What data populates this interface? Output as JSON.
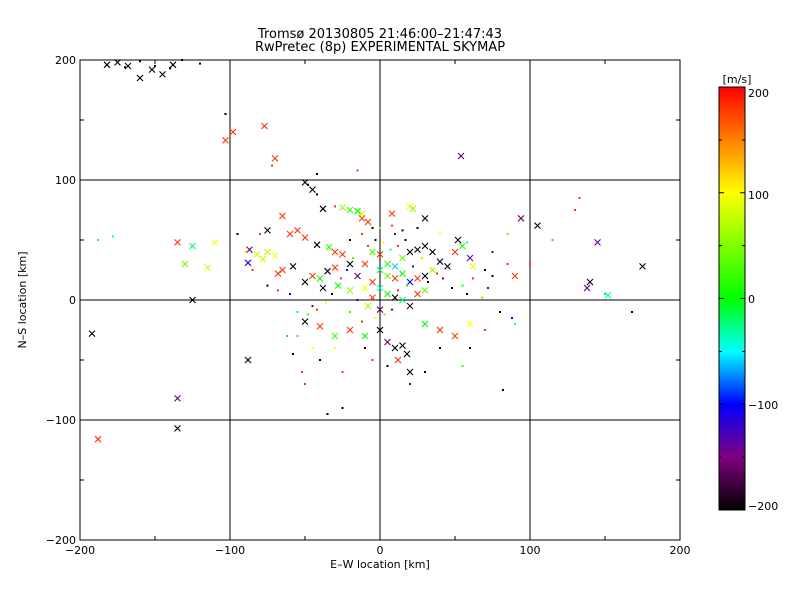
{
  "chart_data": {
    "type": "scatter",
    "title": "Tromsø 20130805 21:46:00–21:47:43",
    "subtitle": "RwPretec (8p) EXPERIMENTAL SKYMAP",
    "xlabel": "E–W location [km]",
    "ylabel": "N–S location [km]",
    "xlim": [
      -200,
      200
    ],
    "ylim": [
      -200,
      200
    ],
    "xticks": [
      "−200",
      "−100",
      "0",
      "100",
      "200"
    ],
    "yticks": [
      "−200",
      "−100",
      "0",
      "100",
      "200"
    ],
    "grid": true,
    "colorbar": {
      "label": "[m/s]",
      "range": [
        -200,
        200
      ],
      "ticks": [
        "200",
        "100",
        "0",
        "−100",
        "−200"
      ]
    },
    "series": [
      {
        "marker": "x",
        "points": [
          [
            -182,
            196,
            -200
          ],
          [
            -175,
            198,
            -200
          ],
          [
            -168,
            195,
            -200
          ],
          [
            -160,
            185,
            -200
          ],
          [
            -152,
            192,
            -200
          ],
          [
            -145,
            188,
            -200
          ],
          [
            -138,
            196,
            -200
          ],
          [
            -103,
            133,
            180
          ],
          [
            -98,
            140,
            180
          ],
          [
            -77,
            145,
            180
          ],
          [
            -70,
            118,
            180
          ],
          [
            54,
            120,
            -160
          ],
          [
            -50,
            98,
            -200
          ],
          [
            -45,
            92,
            -200
          ],
          [
            -65,
            70,
            180
          ],
          [
            -38,
            76,
            -200
          ],
          [
            -25,
            77,
            60
          ],
          [
            -20,
            75,
            20
          ],
          [
            -15,
            74,
            0
          ],
          [
            -12,
            72,
            80
          ],
          [
            20,
            78,
            90
          ],
          [
            22,
            76,
            60
          ],
          [
            30,
            68,
            -200
          ],
          [
            -12,
            68,
            180
          ],
          [
            -8,
            65,
            180
          ],
          [
            8,
            72,
            180
          ],
          [
            -75,
            58,
            -200
          ],
          [
            -60,
            55,
            180
          ],
          [
            -55,
            58,
            180
          ],
          [
            -50,
            52,
            180
          ],
          [
            -42,
            46,
            -200
          ],
          [
            -34,
            44,
            20
          ],
          [
            -30,
            40,
            180
          ],
          [
            -25,
            38,
            180
          ],
          [
            -20,
            30,
            -200
          ],
          [
            -10,
            30,
            180
          ],
          [
            -5,
            40,
            20
          ],
          [
            0,
            38,
            180
          ],
          [
            5,
            30,
            20
          ],
          [
            10,
            28,
            -60
          ],
          [
            15,
            35,
            40
          ],
          [
            20,
            40,
            -200
          ],
          [
            25,
            42,
            -200
          ],
          [
            30,
            45,
            -200
          ],
          [
            35,
            40,
            -200
          ],
          [
            40,
            32,
            -200
          ],
          [
            45,
            28,
            -200
          ],
          [
            50,
            40,
            180
          ],
          [
            55,
            45,
            20
          ],
          [
            60,
            35,
            -140
          ],
          [
            62,
            28,
            90
          ],
          [
            52,
            50,
            -200
          ],
          [
            0,
            25,
            -20
          ],
          [
            5,
            20,
            40
          ],
          [
            10,
            18,
            180
          ],
          [
            15,
            22,
            0
          ],
          [
            20,
            15,
            -100
          ],
          [
            25,
            18,
            180
          ],
          [
            30,
            20,
            -200
          ],
          [
            35,
            25,
            60
          ],
          [
            -5,
            15,
            180
          ],
          [
            -10,
            10,
            100
          ],
          [
            -15,
            20,
            -160
          ],
          [
            -20,
            8,
            60
          ],
          [
            0,
            10,
            -40
          ],
          [
            5,
            5,
            0
          ],
          [
            10,
            2,
            -200
          ],
          [
            15,
            0,
            -20
          ],
          [
            20,
            -5,
            -180
          ],
          [
            25,
            5,
            180
          ],
          [
            30,
            8,
            40
          ],
          [
            -5,
            2,
            180
          ],
          [
            -8,
            -5,
            60
          ],
          [
            0,
            -8,
            -160
          ],
          [
            -135,
            48,
            180
          ],
          [
            -130,
            30,
            40
          ],
          [
            -125,
            45,
            -20
          ],
          [
            -115,
            27,
            80
          ],
          [
            -110,
            48,
            100
          ],
          [
            -87,
            42,
            -160
          ],
          [
            -88,
            31,
            -120
          ],
          [
            -82,
            38,
            80
          ],
          [
            -78,
            34,
            80
          ],
          [
            -75,
            40,
            80
          ],
          [
            -70,
            37,
            100
          ],
          [
            -65,
            25,
            180
          ],
          [
            -68,
            22,
            180
          ],
          [
            -58,
            28,
            -200
          ],
          [
            -45,
            20,
            180
          ],
          [
            -40,
            18,
            0
          ],
          [
            -35,
            24,
            -200
          ],
          [
            -30,
            27,
            180
          ],
          [
            -28,
            12,
            0
          ],
          [
            -38,
            10,
            -200
          ],
          [
            -50,
            15,
            -200
          ],
          [
            -125,
            0,
            -200
          ],
          [
            -192,
            -28,
            -200
          ],
          [
            -88,
            -50,
            -200
          ],
          [
            -135,
            -82,
            -160
          ],
          [
            -135,
            -107,
            -200
          ],
          [
            -188,
            -116,
            180
          ],
          [
            -50,
            -18,
            -200
          ],
          [
            -40,
            -22,
            180
          ],
          [
            -30,
            -30,
            20
          ],
          [
            -20,
            -25,
            180
          ],
          [
            -10,
            -30,
            0
          ],
          [
            0,
            -25,
            -200
          ],
          [
            10,
            -40,
            -200
          ],
          [
            15,
            -38,
            -200
          ],
          [
            18,
            -45,
            -200
          ],
          [
            20,
            -60,
            -200
          ],
          [
            12,
            -50,
            180
          ],
          [
            5,
            -35,
            -160
          ],
          [
            30,
            -20,
            0
          ],
          [
            40,
            -25,
            180
          ],
          [
            50,
            -30,
            180
          ],
          [
            60,
            -20,
            100
          ],
          [
            90,
            20,
            180
          ],
          [
            94,
            68,
            -160
          ],
          [
            105,
            62,
            -200
          ],
          [
            140,
            15,
            -200
          ],
          [
            138,
            10,
            -140
          ],
          [
            145,
            48,
            -140
          ],
          [
            152,
            4,
            -40
          ],
          [
            175,
            28,
            -200
          ]
        ]
      },
      {
        "marker": "dot",
        "points": [
          [
            -188,
            50,
            -20
          ],
          [
            -178,
            53,
            -40
          ],
          [
            -170,
            194,
            -200
          ],
          [
            -160,
            199,
            -200
          ],
          [
            -150,
            195,
            -200
          ],
          [
            -140,
            193,
            -200
          ],
          [
            -132,
            200,
            -200
          ],
          [
            -120,
            197,
            -200
          ],
          [
            -103,
            155,
            -200
          ],
          [
            -72,
            112,
            180
          ],
          [
            -42,
            105,
            -200
          ],
          [
            -15,
            108,
            180
          ],
          [
            -48,
            96,
            -200
          ],
          [
            -42,
            88,
            -200
          ],
          [
            -30,
            78,
            180
          ],
          [
            -5,
            60,
            -200
          ],
          [
            10,
            55,
            -160
          ],
          [
            25,
            60,
            -200
          ],
          [
            40,
            55,
            100
          ],
          [
            58,
            48,
            -40
          ],
          [
            75,
            40,
            -160
          ],
          [
            85,
            55,
            40
          ],
          [
            85,
            30,
            180
          ],
          [
            100,
            30,
            180
          ],
          [
            115,
            50,
            0
          ],
          [
            130,
            75,
            180
          ],
          [
            133,
            85,
            180
          ],
          [
            150,
            5,
            20
          ],
          [
            168,
            -10,
            -200
          ],
          [
            -95,
            55,
            -200
          ],
          [
            -90,
            40,
            100
          ],
          [
            -85,
            25,
            180
          ],
          [
            -60,
            5,
            -100
          ],
          [
            -55,
            -10,
            -20
          ],
          [
            -55,
            -30,
            20
          ],
          [
            -45,
            -40,
            100
          ],
          [
            -40,
            -50,
            -200
          ],
          [
            -30,
            -40,
            100
          ],
          [
            -25,
            -60,
            180
          ],
          [
            -35,
            -95,
            -200
          ],
          [
            -25,
            -90,
            -200
          ],
          [
            -10,
            -40,
            -200
          ],
          [
            -5,
            -50,
            180
          ],
          [
            5,
            -55,
            -200
          ],
          [
            20,
            -70,
            -160
          ],
          [
            30,
            -60,
            -200
          ],
          [
            40,
            -40,
            -200
          ],
          [
            55,
            -55,
            20
          ],
          [
            60,
            -40,
            -200
          ],
          [
            70,
            -25,
            180
          ],
          [
            80,
            -10,
            -200
          ],
          [
            82,
            -75,
            -200
          ],
          [
            90,
            -20,
            -40
          ],
          [
            88,
            -15,
            -100
          ],
          [
            -50,
            -70,
            180
          ],
          [
            -20,
            -10,
            20
          ],
          [
            -15,
            0,
            -100
          ],
          [
            -12,
            -18,
            180
          ],
          [
            -3,
            -15,
            100
          ],
          [
            3,
            -12,
            40
          ],
          [
            8,
            -8,
            -160
          ],
          [
            12,
            8,
            180
          ],
          [
            18,
            12,
            20
          ],
          [
            22,
            28,
            -100
          ],
          [
            28,
            35,
            60
          ],
          [
            32,
            15,
            -200
          ],
          [
            38,
            22,
            180
          ],
          [
            42,
            18,
            -160
          ],
          [
            48,
            10,
            -200
          ],
          [
            55,
            12,
            0
          ],
          [
            58,
            5,
            -200
          ],
          [
            62,
            18,
            180
          ],
          [
            70,
            25,
            -200
          ],
          [
            75,
            20,
            -200
          ],
          [
            72,
            10,
            -160
          ],
          [
            68,
            2,
            40
          ],
          [
            -8,
            45,
            180
          ],
          [
            -3,
            50,
            -200
          ],
          [
            2,
            48,
            100
          ],
          [
            7,
            42,
            -40
          ],
          [
            12,
            45,
            180
          ],
          [
            17,
            50,
            -200
          ],
          [
            -18,
            35,
            40
          ],
          [
            -22,
            25,
            -120
          ],
          [
            -26,
            18,
            180
          ],
          [
            -32,
            5,
            -200
          ],
          [
            -36,
            -2,
            100
          ],
          [
            -42,
            -8,
            180
          ],
          [
            -48,
            -12,
            20
          ],
          [
            -20,
            50,
            -200
          ],
          [
            -12,
            55,
            180
          ],
          [
            0,
            60,
            60
          ],
          [
            8,
            62,
            180
          ],
          [
            15,
            58,
            -200
          ],
          [
            -80,
            55,
            180
          ],
          [
            -75,
            12,
            -200
          ],
          [
            -68,
            8,
            180
          ],
          [
            -62,
            -30,
            0
          ],
          [
            -58,
            -45,
            -200
          ],
          [
            -52,
            -60,
            180
          ],
          [
            -45,
            -5,
            -160
          ]
        ]
      }
    ]
  }
}
